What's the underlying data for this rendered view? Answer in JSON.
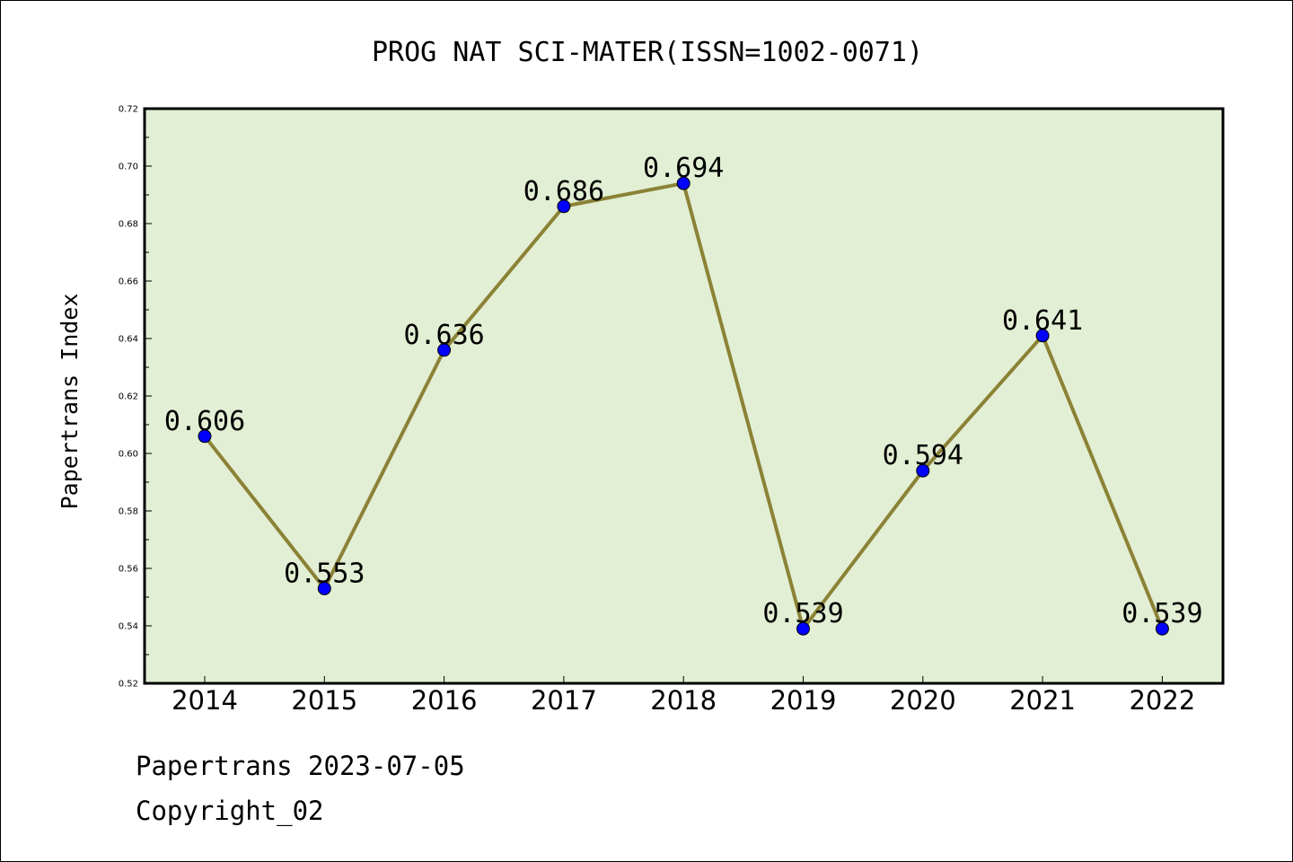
{
  "chart_data": {
    "type": "line",
    "title": "PROG NAT SCI-MATER(ISSN=1002-0071)",
    "xlabel": "",
    "ylabel": "Papertrans Index",
    "categories": [
      "2014",
      "2015",
      "2016",
      "2017",
      "2018",
      "2019",
      "2020",
      "2021",
      "2022"
    ],
    "series": [
      {
        "values": [
          0.606,
          0.553,
          0.636,
          0.686,
          0.694,
          0.539,
          0.594,
          0.641,
          0.539
        ],
        "labels": [
          "0.606",
          "0.553",
          "0.636",
          "0.686",
          "0.694",
          "0.539",
          "0.594",
          "0.641",
          "0.539"
        ]
      }
    ],
    "ylim": [
      0.52,
      0.72
    ],
    "yticks": [
      "0.52",
      "0.54",
      "0.56",
      "0.58",
      "0.60",
      "0.62",
      "0.64",
      "0.66",
      "0.68",
      "0.70",
      "0.72"
    ],
    "grid": false,
    "colors": {
      "plot_background": "#e2efd4",
      "line": "#8b8236",
      "marker": "#0000ff"
    }
  },
  "footer": {
    "line1": "Papertrans 2023-07-05",
    "line2": "Copyright_02"
  }
}
